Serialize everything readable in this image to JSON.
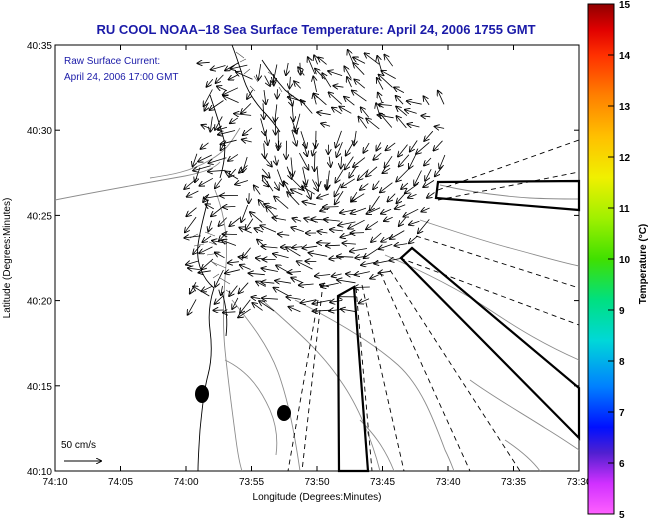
{
  "title": "RU COOL  NOAA–18  Sea Surface Temperature:  April 24, 2006 1755 GMT",
  "legend": {
    "line1": "Raw Surface Current:",
    "line2": "April 24, 2006 17:00 GMT"
  },
  "scale_label": "50 cm/s",
  "xlabel": "Longitude (Degrees:Minutes)",
  "ylabel": "Latitude (Degrees:Minutes)",
  "x_ticks": [
    "74:10",
    "74:05",
    "74:00",
    "73:55",
    "73:50",
    "73:45",
    "73:40",
    "73:35",
    "73:30"
  ],
  "y_ticks": [
    "40:35",
    "40:30",
    "40:25",
    "40:20",
    "40:15",
    "40:10"
  ],
  "colorbar": {
    "label": "Temperature (°C)",
    "min": 5,
    "max": 15,
    "ticks": [
      "15",
      "14",
      "13",
      "12",
      "11",
      "10",
      "9",
      "8",
      "7",
      "6",
      "5"
    ],
    "colors": [
      "#ff60ff",
      "#d030ff",
      "#5020d0",
      "#0010ff",
      "#0080ff",
      "#00d8d8",
      "#00e080",
      "#40e000",
      "#a0f000",
      "#f0f000",
      "#ffc000",
      "#ff8000",
      "#ff3000",
      "#e00000",
      "#900000"
    ]
  },
  "chart_data": {
    "type": "map",
    "title": "RU COOL  NOAA–18  Sea Surface Temperature:  April 24, 2006 1755 GMT",
    "xlabel": "Longitude (Degrees:Minutes)",
    "ylabel": "Latitude (Degrees:Minutes)",
    "xlim": [
      "74:10",
      "73:30"
    ],
    "ylim": [
      "40:10",
      "40:35"
    ],
    "colorbar_range": [
      5,
      15
    ],
    "colorbar_unit": "°C",
    "vector_scale": "50 cm/s"
  }
}
